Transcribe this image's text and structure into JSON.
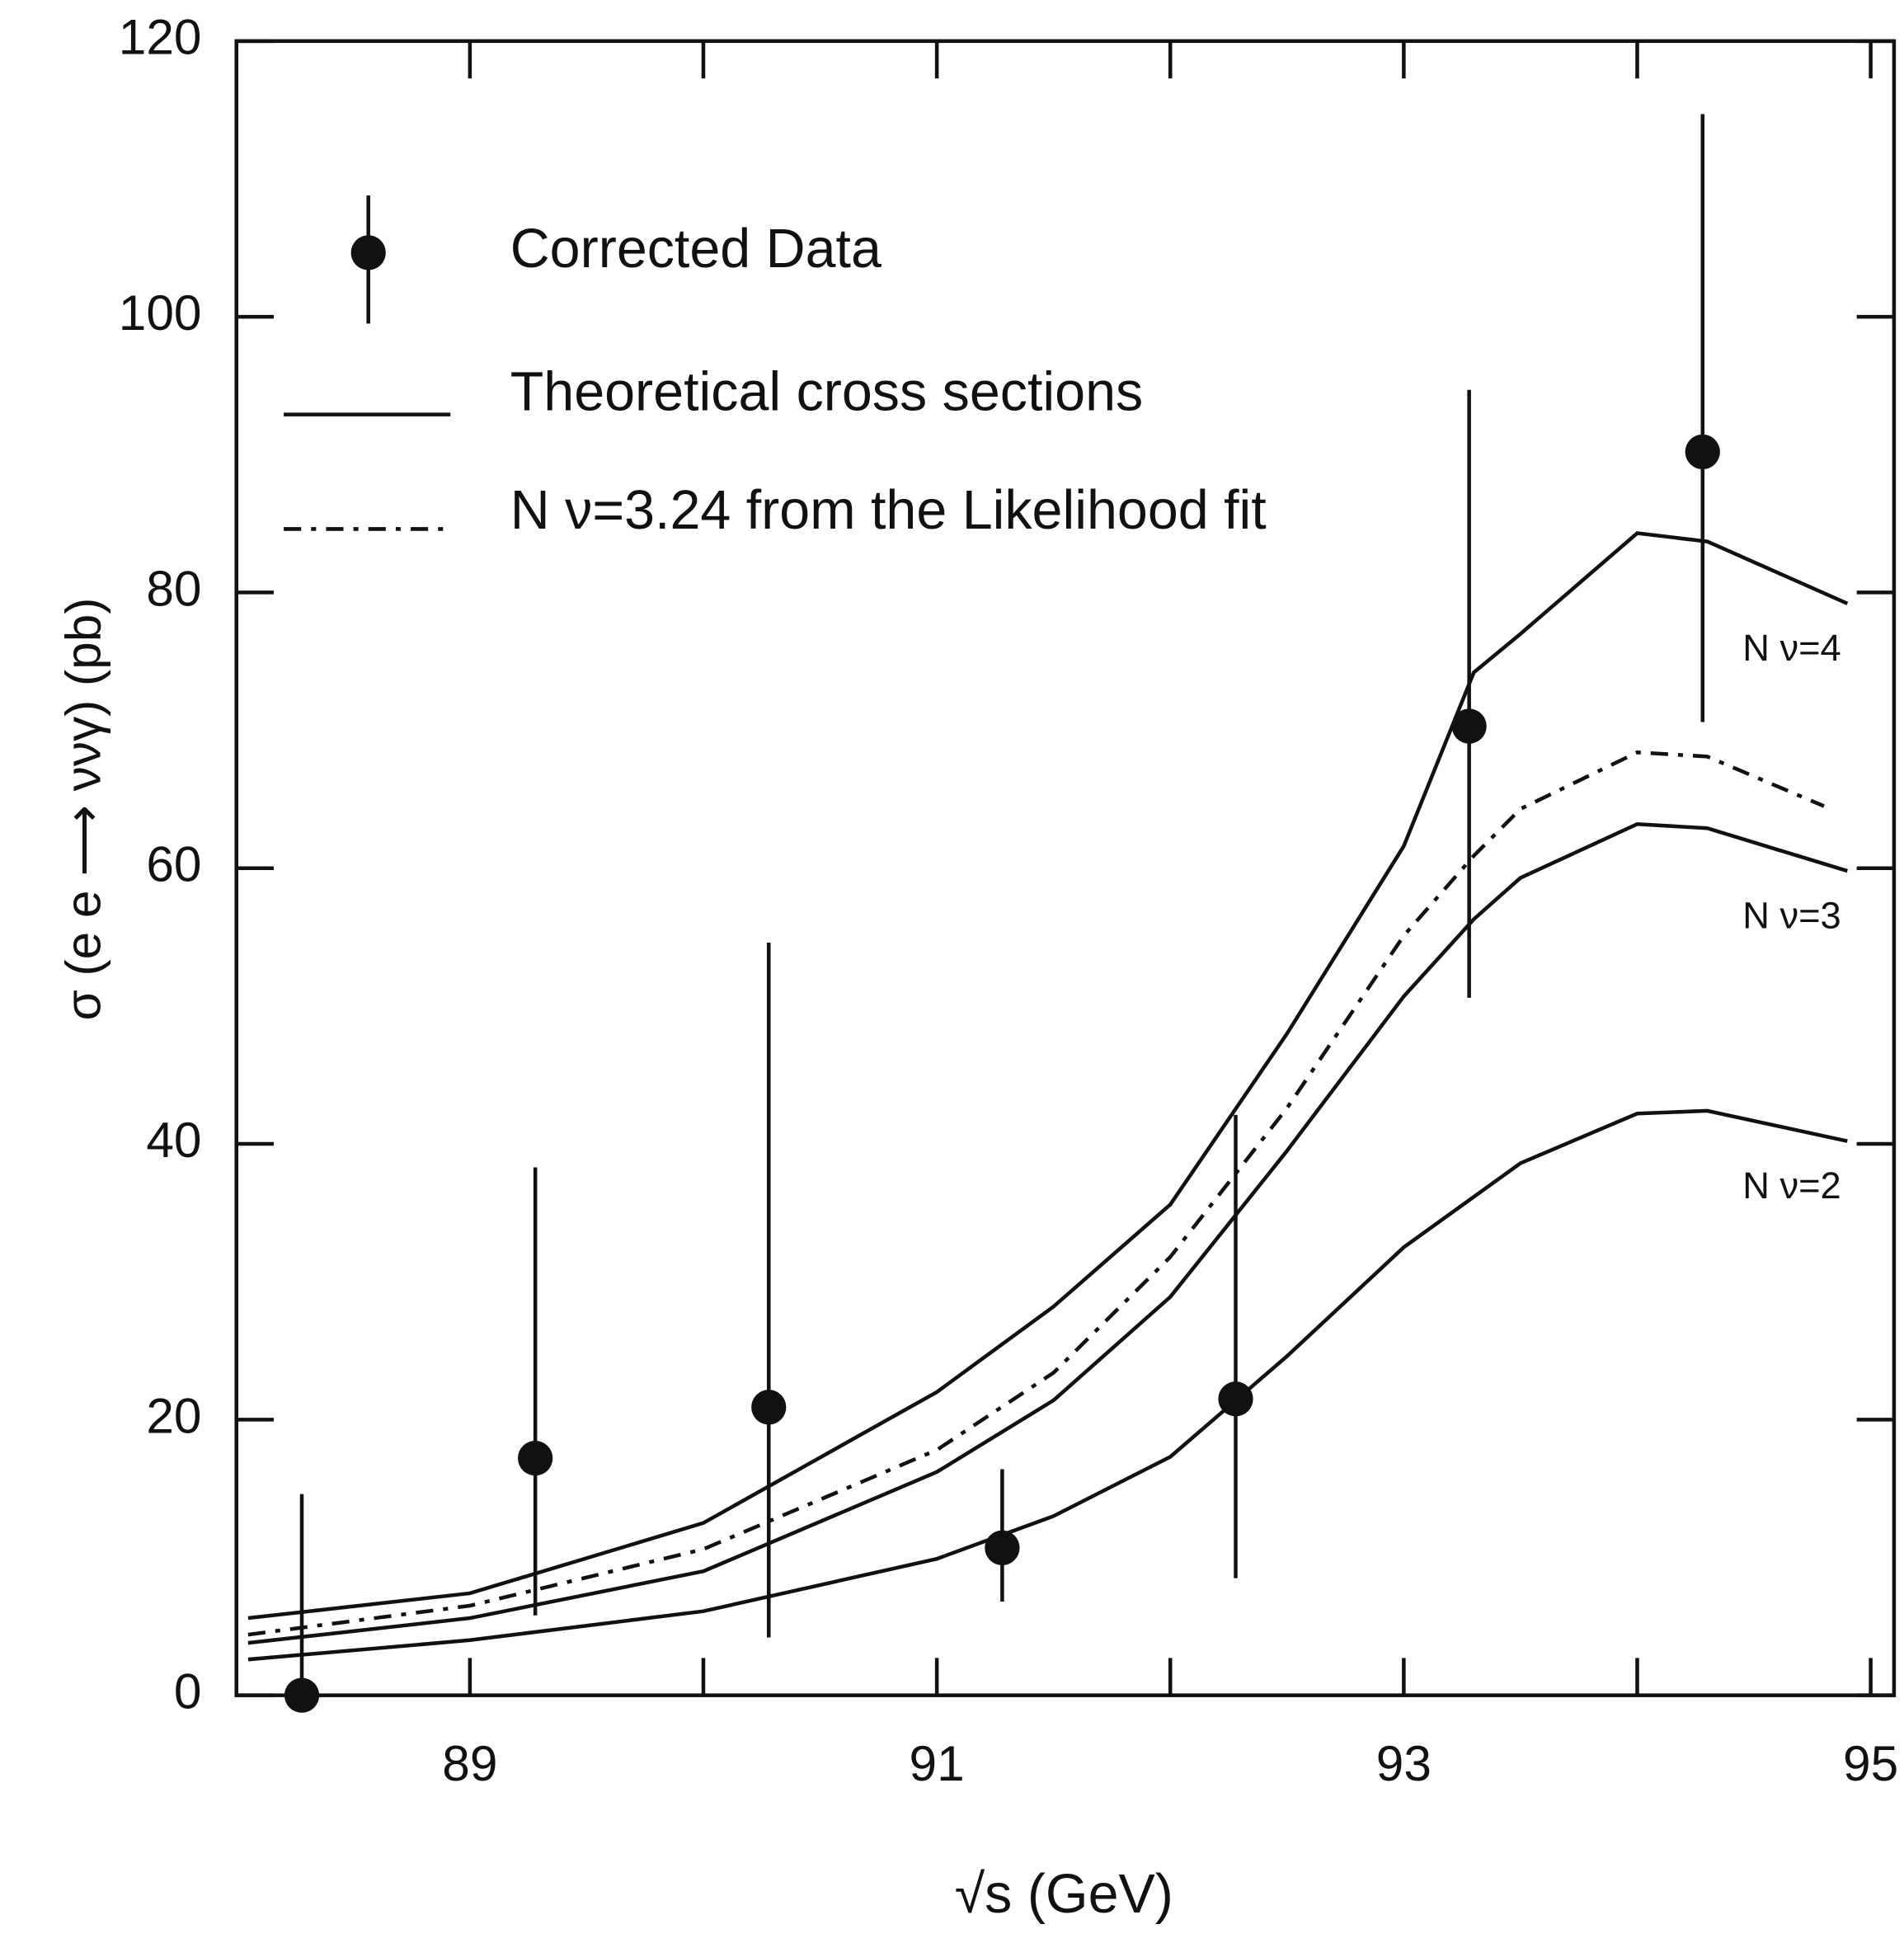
{
  "chart_data": {
    "type": "scatter",
    "xlabel": "√s (GeV)",
    "ylabel": "σ (e e ⟶ ννγ) (pb)",
    "xlim": [
      88,
      95.1
    ],
    "xticks": [
      89,
      91,
      93,
      95
    ],
    "xminorticks": [
      90,
      92,
      94
    ],
    "ylim": [
      0,
      120
    ],
    "yticks": [
      0,
      20,
      40,
      60,
      80,
      100,
      120
    ],
    "legend": [
      "Corrected Data",
      "Theoretical cross sections",
      "N ν=3.24 from the Likelihood fit"
    ],
    "data": {
      "name": "Corrected Data",
      "color": "#111111",
      "x": [
        88.28,
        89.28,
        90.28,
        91.28,
        92.28,
        93.28,
        94.28
      ],
      "y": [
        0,
        17.2,
        20.9,
        10.7,
        21.5,
        70.3,
        90.2
      ],
      "y_high": [
        14.6,
        38.3,
        54.6,
        16.4,
        42.1,
        94.7,
        114.7
      ],
      "y_low": [
        0,
        5.8,
        4.2,
        6.8,
        8.5,
        50.6,
        70.6
      ]
    },
    "curves": [
      {
        "label": "N ν=4",
        "style": "solid",
        "x": [
          88.05,
          89,
          90,
          91,
          91.5,
          92,
          92.5,
          93,
          93.3,
          93.5,
          94,
          94.3,
          94.9
        ],
        "y": [
          5.6,
          7.4,
          12.5,
          22,
          28.2,
          35.6,
          48,
          61.6,
          74.2,
          77,
          84.3,
          83.7,
          79.2
        ]
      },
      {
        "label": "N ν=3",
        "style": "solid",
        "x": [
          88.05,
          89,
          90,
          91,
          91.5,
          92,
          92.5,
          93,
          93.3,
          93.5,
          94,
          94.3,
          94.9
        ],
        "y": [
          3.8,
          5.6,
          9.0,
          16.2,
          21.4,
          28.9,
          39.5,
          50.7,
          56.3,
          59.3,
          63.2,
          62.9,
          59.8
        ]
      },
      {
        "label": "N ν=2",
        "style": "solid",
        "x": [
          88.05,
          89,
          90,
          91,
          91.5,
          92,
          92.5,
          93,
          93.5,
          94,
          94.3,
          94.9
        ],
        "y": [
          2.6,
          4.0,
          6.1,
          9.9,
          13.0,
          17.3,
          24.6,
          32.5,
          38.6,
          42.2,
          42.4,
          40.2
        ]
      },
      {
        "style": "dashdot",
        "x": [
          88.05,
          89,
          90,
          91,
          91.5,
          92,
          92.5,
          93,
          93.3,
          93.5,
          94,
          94.3,
          94.8
        ],
        "y": [
          4.4,
          6.5,
          10.6,
          17.8,
          23.4,
          31.8,
          42.6,
          55.1,
          60.9,
          64.3,
          68.4,
          68.1,
          64.5
        ]
      }
    ]
  }
}
